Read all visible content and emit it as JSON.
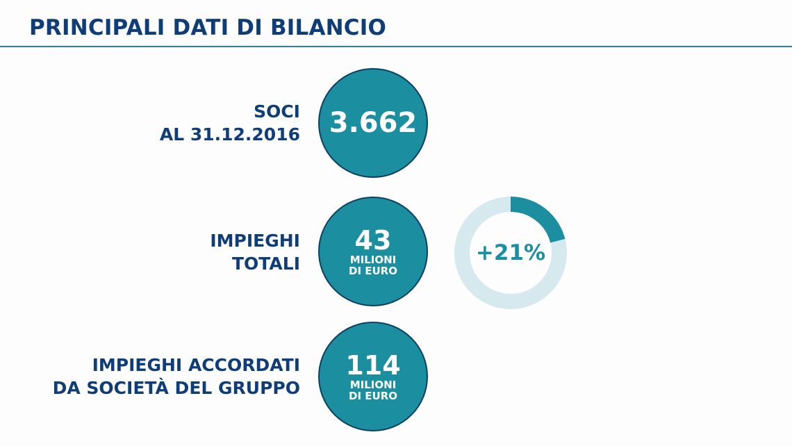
{
  "header": {
    "title": "PRINCIPALI DATI DI BILANCIO"
  },
  "rows": [
    {
      "label_lines": [
        "SOCI",
        "AL 31.12.2016"
      ],
      "value": "3.662"
    },
    {
      "label_lines": [
        "IMPIEGHI",
        "TOTALI"
      ],
      "value": "43",
      "unit_lines": [
        "MILIONI",
        "DI EURO"
      ],
      "growth": {
        "text": "+21%",
        "fraction": 0.21
      }
    },
    {
      "label_lines": [
        "IMPIEGHI ACCORDATI",
        "DA SOCIETÀ DEL GRUPPO"
      ],
      "value": "114",
      "unit_lines": [
        "MILIONI",
        "DI EURO"
      ]
    }
  ],
  "colors": {
    "title": "#0f3d78",
    "circle_fill": "#1b8fa0",
    "circle_border": "#0c3f63",
    "donut_track": "#d6e9ee",
    "donut_progress": "#1b8fa0"
  }
}
